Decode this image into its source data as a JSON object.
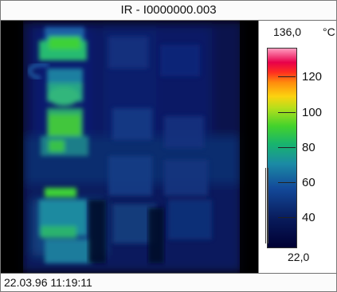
{
  "window": {
    "title": "IR - I0000000.003"
  },
  "scale": {
    "max_label": "136,0",
    "unit_label": "°C",
    "min_label": "22,0",
    "tick_labels": [
      "120",
      "100",
      "80",
      "60",
      "40"
    ]
  },
  "status": {
    "datetime": "22.03.96 11:19:11"
  },
  "colors": {
    "image_background": "#000000",
    "scale_top": "#ff9bbf",
    "scale_bottom": "#000033"
  }
}
